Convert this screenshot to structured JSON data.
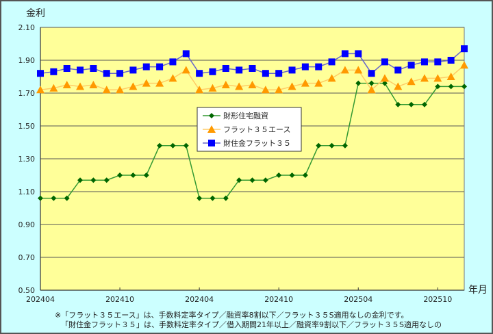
{
  "chart_data": {
    "type": "line",
    "title": "",
    "ylabel": "金利",
    "xlabel": "年月",
    "ylim": [
      0.5,
      2.1
    ],
    "yticks": [
      "2.10",
      "1.90",
      "1.70",
      "1.50",
      "1.30",
      "1.10",
      "0.90",
      "0.70",
      "0.50"
    ],
    "xtick_labels": [
      "202404",
      "202410",
      "202404",
      "202410",
      "202504",
      "202510"
    ],
    "xtick_indices": [
      0,
      6,
      12,
      18,
      24,
      30
    ],
    "grid": true,
    "legend_position": "center-left inside plot",
    "plot_background": "#ffff99",
    "chart_background": "#ccffff",
    "n_points": 33,
    "series": [
      {
        "name": "財形住宅融資",
        "color": "#339933",
        "marker": "diamond",
        "marker_color": "#006600",
        "values": [
          1.06,
          1.06,
          1.06,
          1.17,
          1.17,
          1.17,
          1.2,
          1.2,
          1.2,
          1.38,
          1.38,
          1.38,
          1.06,
          1.06,
          1.06,
          1.17,
          1.17,
          1.17,
          1.2,
          1.2,
          1.2,
          1.38,
          1.38,
          1.38,
          1.76,
          1.76,
          1.76,
          1.63,
          1.63,
          1.63,
          1.74,
          1.74,
          1.74
        ]
      },
      {
        "name": "フラット３５エース",
        "color": "#ffcc66",
        "marker": "triangle",
        "marker_color": "#ff9900",
        "values": [
          1.72,
          1.73,
          1.75,
          1.74,
          1.75,
          1.72,
          1.72,
          1.74,
          1.76,
          1.76,
          1.79,
          1.84,
          1.72,
          1.73,
          1.75,
          1.74,
          1.75,
          1.72,
          1.72,
          1.74,
          1.76,
          1.76,
          1.79,
          1.84,
          1.84,
          1.72,
          1.79,
          1.74,
          1.77,
          1.79,
          1.79,
          1.8,
          1.87
        ]
      },
      {
        "name": "財住金フラット３５",
        "color": "#6666cc",
        "marker": "square",
        "marker_color": "#0000ff",
        "values": [
          1.82,
          1.83,
          1.85,
          1.84,
          1.85,
          1.82,
          1.82,
          1.84,
          1.86,
          1.86,
          1.89,
          1.94,
          1.82,
          1.83,
          1.85,
          1.84,
          1.85,
          1.82,
          1.82,
          1.84,
          1.86,
          1.86,
          1.89,
          1.94,
          1.94,
          1.82,
          1.89,
          1.84,
          1.87,
          1.89,
          1.89,
          1.9,
          1.97
        ]
      }
    ],
    "notes": [
      "※「フラット３５エース」は、手数料定率タイプ／融資率8割以下／フラット３５S適用なしの金利です。",
      "「財住金フラット３５」は、手数料定率タイプ／借入期間21年以上／融資率9割以下／フラット３５S適用なしの"
    ]
  }
}
